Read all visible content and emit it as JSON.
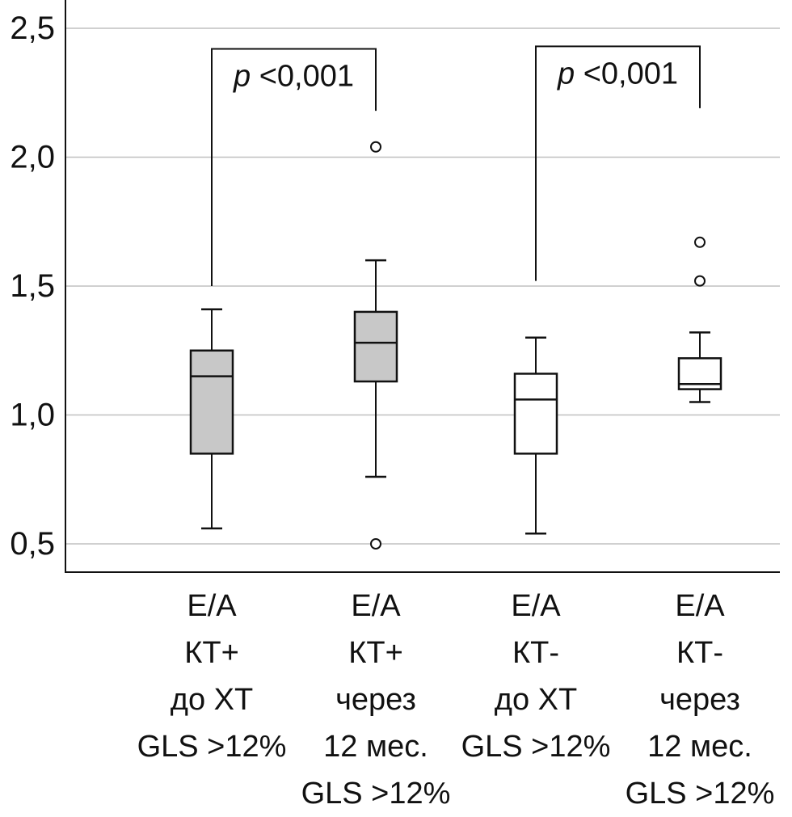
{
  "chart_data": {
    "type": "boxplot",
    "title": "",
    "xlabel": "",
    "ylabel": "",
    "ylim": [
      0.39,
      2.6
    ],
    "yticks": [
      0.5,
      1.0,
      1.5,
      2.0,
      2.5
    ],
    "ytick_labels": [
      "0,5",
      "1,0",
      "1,5",
      "2,0",
      "2,5"
    ],
    "grid": true,
    "categories": [
      [
        "E/A",
        "КТ+",
        "до ХТ",
        "GLS >12%"
      ],
      [
        "E/A",
        "КТ+",
        "через",
        "12 мес.",
        "GLS >12%"
      ],
      [
        "E/A",
        "КТ-",
        "до ХТ",
        "GLS >12%"
      ],
      [
        "E/A",
        "КТ-",
        "через",
        "12 мес.",
        "GLS >12%"
      ]
    ],
    "boxes": [
      {
        "name": "E/A КТ+ до ХТ GLS >12%",
        "whisker_low": 0.56,
        "q1": 0.85,
        "median": 1.15,
        "q3": 1.25,
        "whisker_high": 1.41,
        "outliers": [],
        "fill": "#c8c8c8"
      },
      {
        "name": "E/A КТ+ через 12 мес. GLS >12%",
        "whisker_low": 0.76,
        "q1": 1.13,
        "median": 1.28,
        "q3": 1.4,
        "whisker_high": 1.6,
        "outliers": [
          2.04,
          0.5
        ],
        "fill": "#c8c8c8"
      },
      {
        "name": "E/A КТ- до ХТ GLS >12%",
        "whisker_low": 0.54,
        "q1": 0.85,
        "median": 1.06,
        "q3": 1.16,
        "whisker_high": 1.3,
        "outliers": [],
        "fill": "#ffffff"
      },
      {
        "name": "E/A КТ- через 12 мес. GLS >12%",
        "whisker_low": 1.05,
        "q1": 1.1,
        "median": 1.12,
        "q3": 1.22,
        "whisker_high": 1.32,
        "outliers": [
          1.67,
          1.52
        ],
        "fill": "#ffffff"
      }
    ],
    "annotations": [
      {
        "type": "bracket",
        "from": 0,
        "to": 1,
        "top": 2.42,
        "left_end": 1.5,
        "right_end": 2.18,
        "label_italic": "p",
        "label": "<0,001"
      },
      {
        "type": "bracket",
        "from": 2,
        "to": 3,
        "top": 2.43,
        "left_end": 1.52,
        "right_end": 2.19,
        "label_italic": "p",
        "label": "<0,001"
      }
    ],
    "colors": {
      "grid": "#c0c0c0",
      "axis": "#111111",
      "box_stroke": "#111111"
    }
  }
}
